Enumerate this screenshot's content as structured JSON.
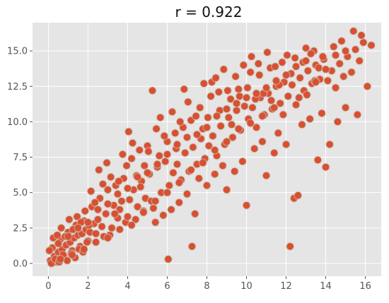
{
  "chart_data": {
    "type": "scatter",
    "title": "r = 0.922",
    "xlabel": "",
    "ylabel": "",
    "xlim": [
      -0.8,
      16.8
    ],
    "ylim": [
      -0.9,
      17.0
    ],
    "x_ticks": [
      0,
      2,
      4,
      6,
      8,
      10,
      12,
      14,
      16
    ],
    "x_tick_labels": [
      "0",
      "2",
      "4",
      "6",
      "8",
      "10",
      "12",
      "14",
      "16"
    ],
    "y_ticks": [
      0.0,
      2.5,
      5.0,
      7.5,
      10.0,
      12.5,
      15.0
    ],
    "y_tick_labels": [
      "0.0",
      "2.5",
      "5.0",
      "7.5",
      "10.0",
      "12.5",
      "15.0"
    ],
    "grid": true,
    "legend": "none",
    "colors": {
      "background": "#e5e5e5",
      "grid": "#ffffff",
      "point_fill": "#e24a33",
      "point_edge": "#9c7a3a",
      "point_halo": "#f5b7c8"
    },
    "series": [
      {
        "points": [
          [
            0.1,
            0.2
          ],
          [
            0.3,
            0.5
          ],
          [
            0.5,
            0.8
          ],
          [
            0.7,
            1.0
          ],
          [
            0.9,
            1.3
          ],
          [
            1.1,
            1.5
          ],
          [
            1.3,
            1.8
          ],
          [
            1.5,
            2.0
          ],
          [
            1.7,
            2.1
          ],
          [
            1.9,
            2.4
          ],
          [
            0.2,
            1.1
          ],
          [
            0.4,
            0.1
          ],
          [
            0.6,
            1.7
          ],
          [
            0.8,
            0.4
          ],
          [
            1.0,
            2.2
          ],
          [
            1.2,
            0.9
          ],
          [
            1.4,
            2.7
          ],
          [
            1.6,
            1.2
          ],
          [
            1.8,
            3.0
          ],
          [
            2.0,
            1.6
          ],
          [
            2.1,
            2.2
          ],
          [
            2.3,
            2.8
          ],
          [
            2.5,
            3.1
          ],
          [
            2.7,
            2.6
          ],
          [
            2.9,
            3.5
          ],
          [
            3.1,
            2.0
          ],
          [
            3.3,
            4.1
          ],
          [
            3.5,
            3.2
          ],
          [
            3.7,
            4.4
          ],
          [
            3.9,
            2.9
          ],
          [
            2.2,
            4.0
          ],
          [
            2.4,
            1.5
          ],
          [
            2.6,
            4.6
          ],
          [
            2.8,
            1.9
          ],
          [
            3.0,
            5.2
          ],
          [
            3.2,
            2.5
          ],
          [
            3.4,
            5.5
          ],
          [
            3.6,
            3.8
          ],
          [
            3.8,
            6.0
          ],
          [
            4.0,
            3.3
          ],
          [
            4.1,
            4.5
          ],
          [
            4.3,
            5.2
          ],
          [
            4.5,
            4.0
          ],
          [
            4.7,
            5.8
          ],
          [
            4.9,
            4.6
          ],
          [
            5.1,
            6.3
          ],
          [
            5.3,
            3.9
          ],
          [
            5.5,
            6.8
          ],
          [
            5.7,
            5.0
          ],
          [
            5.9,
            7.2
          ],
          [
            4.2,
            7.4
          ],
          [
            4.4,
            3.1
          ],
          [
            4.6,
            8.0
          ],
          [
            4.8,
            3.7
          ],
          [
            5.0,
            8.3
          ],
          [
            5.2,
            4.4
          ],
          [
            5.4,
            2.9
          ],
          [
            5.6,
            7.6
          ],
          [
            5.8,
            3.4
          ],
          [
            6.0,
            8.6
          ],
          [
            6.1,
            5.5
          ],
          [
            6.3,
            6.4
          ],
          [
            6.5,
            7.0
          ],
          [
            6.7,
            5.9
          ],
          [
            6.9,
            7.8
          ],
          [
            7.1,
            6.5
          ],
          [
            7.3,
            8.2
          ],
          [
            7.5,
            7.0
          ],
          [
            7.7,
            8.8
          ],
          [
            7.9,
            7.4
          ],
          [
            6.2,
            3.8
          ],
          [
            6.4,
            9.2
          ],
          [
            6.6,
            4.3
          ],
          [
            6.8,
            9.6
          ],
          [
            7.0,
            4.9
          ],
          [
            7.2,
            10.1
          ],
          [
            7.4,
            3.5
          ],
          [
            7.6,
            6.0
          ],
          [
            7.8,
            9.5
          ],
          [
            8.0,
            5.5
          ],
          [
            8.1,
            8.3
          ],
          [
            8.3,
            9.0
          ],
          [
            8.5,
            7.6
          ],
          [
            8.7,
            9.7
          ],
          [
            8.9,
            8.4
          ],
          [
            9.1,
            10.3
          ],
          [
            9.3,
            8.9
          ],
          [
            9.5,
            10.8
          ],
          [
            9.7,
            9.4
          ],
          [
            9.9,
            11.1
          ],
          [
            8.2,
            11.8
          ],
          [
            8.4,
            6.3
          ],
          [
            8.6,
            12.1
          ],
          [
            8.8,
            6.9
          ],
          [
            9.0,
            5.2
          ],
          [
            9.2,
            11.6
          ],
          [
            9.4,
            6.5
          ],
          [
            9.6,
            12.3
          ],
          [
            9.8,
            7.2
          ],
          [
            10.0,
            4.1
          ],
          [
            10.1,
            10.2
          ],
          [
            10.3,
            11.0
          ],
          [
            10.5,
            9.6
          ],
          [
            10.7,
            11.7
          ],
          [
            10.9,
            10.5
          ],
          [
            11.1,
            12.0
          ],
          [
            11.3,
            10.9
          ],
          [
            11.5,
            12.5
          ],
          [
            11.7,
            11.3
          ],
          [
            11.9,
            12.8
          ],
          [
            10.2,
            13.5
          ],
          [
            10.4,
            8.1
          ],
          [
            10.6,
            14.1
          ],
          [
            10.8,
            8.6
          ],
          [
            11.0,
            6.2
          ],
          [
            11.2,
            13.8
          ],
          [
            11.4,
            7.8
          ],
          [
            11.6,
            9.2
          ],
          [
            11.8,
            14.2
          ],
          [
            12.0,
            8.4
          ],
          [
            12.1,
            11.8
          ],
          [
            12.3,
            12.6
          ],
          [
            12.5,
            11.2
          ],
          [
            12.7,
            13.1
          ],
          [
            12.9,
            12.2
          ],
          [
            13.1,
            13.6
          ],
          [
            13.3,
            12.7
          ],
          [
            13.5,
            14.0
          ],
          [
            13.7,
            13.0
          ],
          [
            13.9,
            14.4
          ],
          [
            12.2,
            1.2
          ],
          [
            12.4,
            4.6
          ],
          [
            12.6,
            4.8
          ],
          [
            12.8,
            9.8
          ],
          [
            13.0,
            15.2
          ],
          [
            13.2,
            10.2
          ],
          [
            13.4,
            15.0
          ],
          [
            13.6,
            7.3
          ],
          [
            13.8,
            10.6
          ],
          [
            14.0,
            6.8
          ],
          [
            14.1,
            12.9
          ],
          [
            14.3,
            13.6
          ],
          [
            14.5,
            12.4
          ],
          [
            14.7,
            14.1
          ],
          [
            14.9,
            13.2
          ],
          [
            15.1,
            14.6
          ],
          [
            15.3,
            13.5
          ],
          [
            15.5,
            15.1
          ],
          [
            15.7,
            14.3
          ],
          [
            15.9,
            15.6
          ],
          [
            14.2,
            8.4
          ],
          [
            14.4,
            15.3
          ],
          [
            14.6,
            10.0
          ],
          [
            14.8,
            15.7
          ],
          [
            15.0,
            11.0
          ],
          [
            15.4,
            16.4
          ],
          [
            15.6,
            10.5
          ],
          [
            15.8,
            16.1
          ],
          [
            16.1,
            12.5
          ],
          [
            16.3,
            15.4
          ],
          [
            0.15,
            0.0
          ],
          [
            0.35,
            0.3
          ],
          [
            0.55,
            0.1
          ],
          [
            0.75,
            0.6
          ],
          [
            0.95,
            0.2
          ],
          [
            1.15,
            0.7
          ],
          [
            1.35,
            0.4
          ],
          [
            1.55,
            1.0
          ],
          [
            1.75,
            0.8
          ],
          [
            1.95,
            1.5
          ],
          [
            0.25,
            1.8
          ],
          [
            0.45,
            2.0
          ],
          [
            0.65,
            2.5
          ],
          [
            0.85,
            1.9
          ],
          [
            1.05,
            3.1
          ],
          [
            1.25,
            2.4
          ],
          [
            1.45,
            3.3
          ],
          [
            1.65,
            2.9
          ],
          [
            1.85,
            3.7
          ],
          [
            2.05,
            2.7
          ],
          [
            2.15,
            5.1
          ],
          [
            2.35,
            4.3
          ],
          [
            2.55,
            6.6
          ],
          [
            2.75,
            5.6
          ],
          [
            2.95,
            7.1
          ],
          [
            3.15,
            6.1
          ],
          [
            3.35,
            3.5
          ],
          [
            3.55,
            5.8
          ],
          [
            3.75,
            7.7
          ],
          [
            3.95,
            6.9
          ],
          [
            4.05,
            9.3
          ],
          [
            4.25,
            8.5
          ],
          [
            4.45,
            6.2
          ],
          [
            4.65,
            5.4
          ],
          [
            4.85,
            6.9
          ],
          [
            5.05,
            7.9
          ],
          [
            5.25,
            12.2
          ],
          [
            5.45,
            9.5
          ],
          [
            5.65,
            10.3
          ],
          [
            5.85,
            9.0
          ],
          [
            6.05,
            0.3
          ],
          [
            6.25,
            10.7
          ],
          [
            6.45,
            8.1
          ],
          [
            6.65,
            10.0
          ],
          [
            6.85,
            12.3
          ],
          [
            7.05,
            11.4
          ],
          [
            7.25,
            1.2
          ],
          [
            7.45,
            10.4
          ],
          [
            7.65,
            11.0
          ],
          [
            7.85,
            12.7
          ],
          [
            8.05,
            10.3
          ],
          [
            8.25,
            12.8
          ],
          [
            8.45,
            13.1
          ],
          [
            8.65,
            10.8
          ],
          [
            8.85,
            13.7
          ],
          [
            9.05,
            12.2
          ],
          [
            9.25,
            9.8
          ],
          [
            9.45,
            13.2
          ],
          [
            9.65,
            11.8
          ],
          [
            9.85,
            14.0
          ],
          [
            10.05,
            12.4
          ],
          [
            10.25,
            14.6
          ],
          [
            10.45,
            11.6
          ],
          [
            10.65,
            13.3
          ],
          [
            10.85,
            12.0
          ],
          [
            11.05,
            14.9
          ],
          [
            11.25,
            11.5
          ],
          [
            11.45,
            13.9
          ],
          [
            11.65,
            12.6
          ],
          [
            11.85,
            10.5
          ],
          [
            12.05,
            14.7
          ],
          [
            12.25,
            13.4
          ],
          [
            12.45,
            14.5
          ],
          [
            12.65,
            11.7
          ],
          [
            12.85,
            14.2
          ],
          [
            13.05,
            11.9
          ],
          [
            13.25,
            14.8
          ],
          [
            13.45,
            12.9
          ],
          [
            13.65,
            13.8
          ],
          [
            13.85,
            14.6
          ],
          [
            0.5,
            1.4
          ],
          [
            1.0,
            1.9
          ],
          [
            1.5,
            2.5
          ],
          [
            2.0,
            2.9
          ],
          [
            2.5,
            3.8
          ],
          [
            3.0,
            4.2
          ],
          [
            3.5,
            4.9
          ],
          [
            4.0,
            5.3
          ],
          [
            4.5,
            6.1
          ],
          [
            5.0,
            6.4
          ],
          [
            5.5,
            7.0
          ],
          [
            6.0,
            7.7
          ],
          [
            6.5,
            8.4
          ],
          [
            7.0,
            8.9
          ],
          [
            7.5,
            9.1
          ],
          [
            8.0,
            9.6
          ],
          [
            8.5,
            10.4
          ],
          [
            9.0,
            10.9
          ],
          [
            9.5,
            11.3
          ],
          [
            10.0,
            11.7
          ],
          [
            10.5,
            12.0
          ],
          [
            11.0,
            12.4
          ],
          [
            11.5,
            12.9
          ],
          [
            12.0,
            13.3
          ],
          [
            12.5,
            13.9
          ],
          [
            13.0,
            14.3
          ],
          [
            13.5,
            12.8
          ],
          [
            14.0,
            13.7
          ],
          [
            14.5,
            14.7
          ],
          [
            15.0,
            15.0
          ],
          [
            0.05,
            0.9
          ],
          [
            0.6,
            0.3
          ],
          [
            1.2,
            0.6
          ],
          [
            1.8,
            1.0
          ],
          [
            2.4,
            2.1
          ],
          [
            3.0,
            1.8
          ],
          [
            3.6,
            2.4
          ],
          [
            4.2,
            2.7
          ],
          [
            4.8,
            3.6
          ],
          [
            5.4,
            4.4
          ],
          [
            6.0,
            5.0
          ],
          [
            6.6,
            5.7
          ],
          [
            7.2,
            6.6
          ],
          [
            7.8,
            7.1
          ],
          [
            8.4,
            8.0
          ],
          [
            9.0,
            8.6
          ],
          [
            9.6,
            9.5
          ],
          [
            10.2,
            9.9
          ],
          [
            10.8,
            10.4
          ],
          [
            11.4,
            11.0
          ]
        ]
      }
    ]
  }
}
